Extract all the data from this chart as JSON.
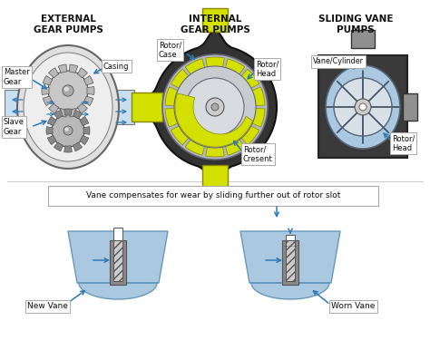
{
  "bg_color": "#ffffff",
  "title_color": "#111111",
  "label_color": "#111111",
  "arrow_color": "#2e7ab5",
  "section_titles": [
    "EXTERNAL\nGEAR PUMPS",
    "INTERNAL\nGEAR PUMPS",
    "SLIDING VANE\nPUMPS"
  ],
  "bottom_text": "Vane compensates for wear by sliding further out of rotor slot",
  "new_vane_label": "New Vane",
  "worn_vane_label": "Worn Vane",
  "label_box_color": "#ffffff",
  "label_box_edge": "#aaaaaa",
  "gear_silver": "#b8b8b8",
  "gear_silver_dark": "#888888",
  "gear_silver_light": "#e0e0e0",
  "gear_silver_mid": "#c8c8c8",
  "internal_yellow": "#d4e000",
  "internal_gray": "#b0b8c0",
  "internal_dark": "#333333",
  "vane_blue_light": "#aac8e0",
  "vane_blue_mid": "#88aac8",
  "sliding_dark": "#444444",
  "sliding_gray": "#909090",
  "trough_blue": "#aac8e0",
  "pipe_blue": "#c8dff0"
}
